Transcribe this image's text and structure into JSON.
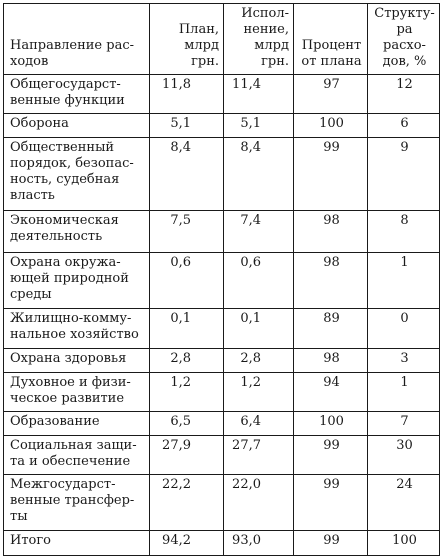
{
  "table": {
    "headers": [
      "Направление рас-\nходов",
      "План,\nмлрд\nгрн.",
      "Испол-\nнение,\nмлрд\nгрн.",
      "Процент\nот плана",
      "Структу-\nра расхо-\nдов, %"
    ],
    "rows": [
      [
        "Общегосударст-\nвенные функции",
        "11,8",
        "11,4",
        "97",
        "12"
      ],
      [
        "Оборона",
        "5,1",
        "5,1",
        "100",
        "6"
      ],
      [
        "Общественный\nпорядок, безопас-\nность, судебная\nвласть",
        "8,4",
        "8,4",
        "99",
        "9"
      ],
      [
        "Экономическая\nдеятельность",
        "7,5",
        "7,4",
        "98",
        "8"
      ],
      [
        "Охрана окружа-\nющей природной\nсреды",
        "0,6",
        "0,6",
        "98",
        "1"
      ],
      [
        "Жилищно-комму-\nнальное хозяйство",
        "0,1",
        "0,1",
        "89",
        "0"
      ],
      [
        "Охрана здоровья",
        "2,8",
        "2,8",
        "98",
        "3"
      ],
      [
        "Духовное и физи-\nческое развитие",
        "1,2",
        "1,2",
        "94",
        "1"
      ],
      [
        "Образование",
        "6,5",
        "6,4",
        "100",
        "7"
      ],
      [
        "Социальная защи-\nта и обеспечение",
        "27,9",
        "27,7",
        "99",
        "30"
      ],
      [
        "Межгосударст-\nвенные трансфер-\nты",
        "22,2",
        "22,0",
        "99",
        "24"
      ],
      [
        "Итого",
        "94,2",
        "93,0",
        "99",
        "100"
      ]
    ]
  }
}
